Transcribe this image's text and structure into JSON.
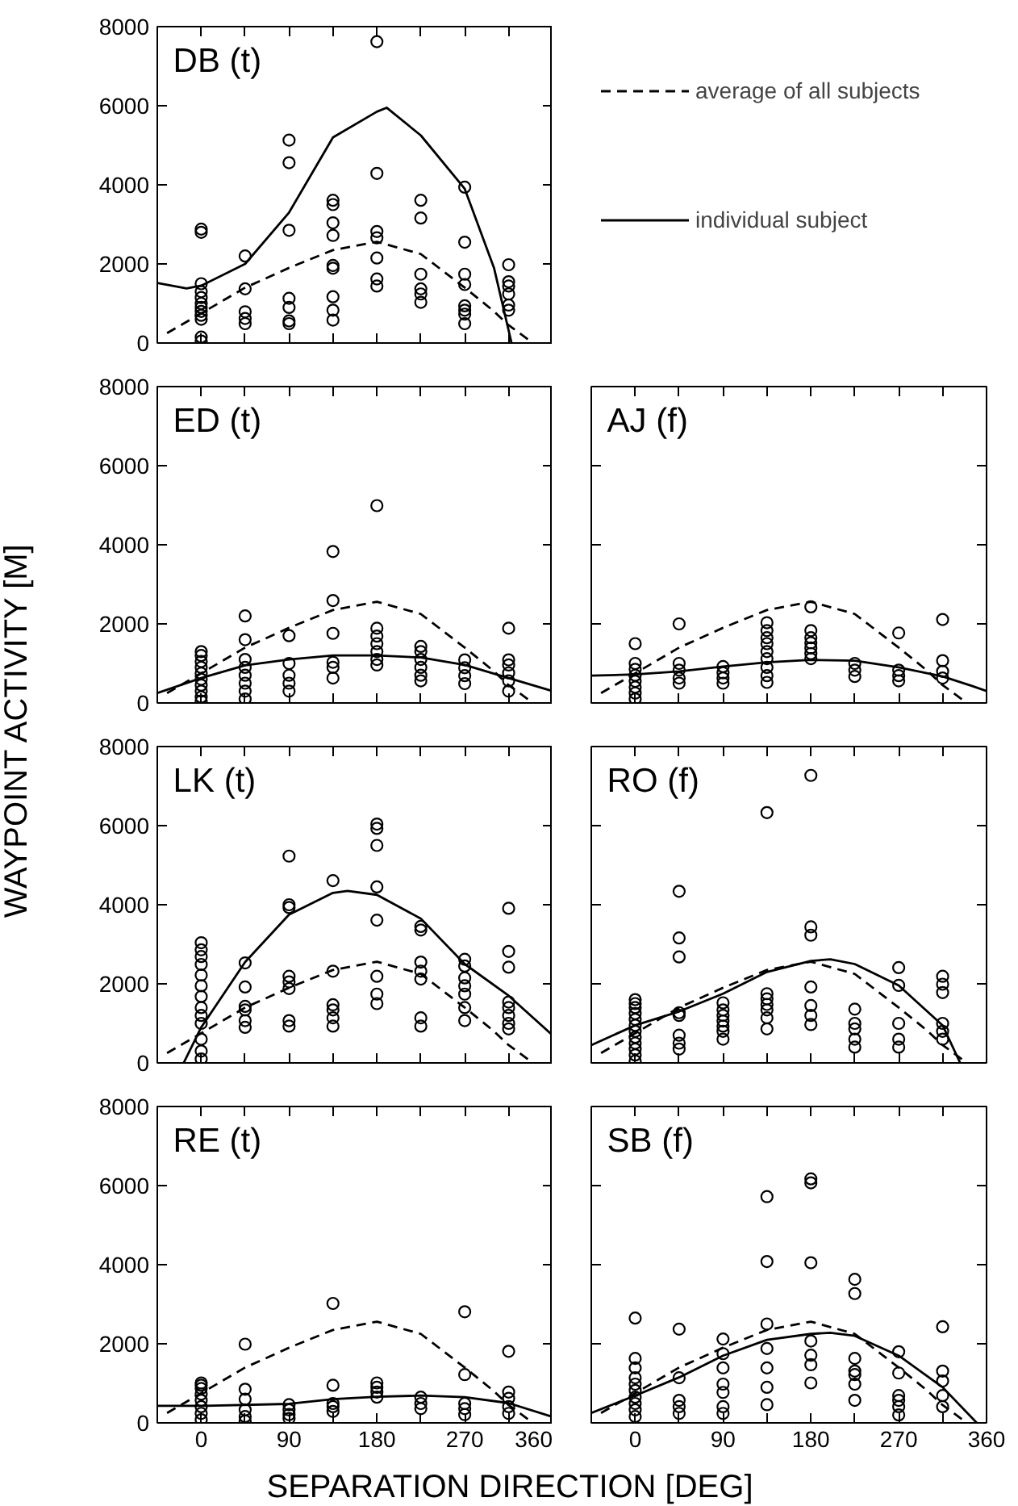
{
  "chart_data": [
    {
      "type": "scatter",
      "title": "DB (t)",
      "xlim": [
        -45,
        360
      ],
      "ylim": [
        0,
        8000
      ],
      "xticks": [
        0,
        {
          "value": 45,
          "label": null
        },
        90,
        {
          "value": 135,
          "label": null
        },
        180,
        {
          "value": 225,
          "label": null
        },
        270,
        {
          "value": 315,
          "label": null
        },
        360
      ],
      "yticks": [
        0,
        2000,
        4000,
        6000,
        8000
      ],
      "tick_labels": "y",
      "legend": "right",
      "series": [
        {
          "marker": "circle",
          "x": [
            0,
            0,
            0,
            0,
            0,
            0,
            0,
            0,
            0,
            0,
            0,
            0,
            45,
            45,
            45,
            45,
            45,
            90,
            90,
            90,
            90,
            90,
            90,
            90,
            135,
            135,
            135,
            135,
            135,
            135,
            135,
            135,
            135,
            180,
            180,
            180,
            180,
            180,
            180,
            180,
            225,
            225,
            225,
            225,
            225,
            225,
            270,
            270,
            270,
            270,
            270,
            270,
            270,
            270,
            315,
            315,
            315,
            315,
            315,
            315
          ],
          "values": [
            2880,
            2800,
            1500,
            1300,
            1150,
            1000,
            900,
            800,
            700,
            600,
            150,
            50,
            2200,
            1370,
            790,
            620,
            490,
            5130,
            4560,
            2850,
            1130,
            900,
            560,
            490,
            3610,
            3500,
            3040,
            2720,
            1960,
            1890,
            1170,
            830,
            580,
            7620,
            4290,
            2820,
            2660,
            2150,
            1620,
            1440,
            3610,
            3160,
            1740,
            1370,
            1240,
            1030,
            3940,
            2550,
            1740,
            1480,
            940,
            830,
            730,
            490,
            1980,
            1550,
            1440,
            1240,
            960,
            830
          ],
          "color": "#000000"
        },
        {
          "type": "line",
          "line_style": "dashed",
          "name": "average of all subjects",
          "x": [
            -35,
            0,
            45,
            90,
            135,
            180,
            225,
            270,
            300,
            315,
            340
          ],
          "values": [
            250,
            750,
            1400,
            1900,
            2350,
            2560,
            2250,
            1400,
            800,
            450,
            0
          ],
          "color": "#000000"
        },
        {
          "type": "line",
          "line_style": "solid",
          "name": "individual subject",
          "x": [
            -45,
            -15,
            0,
            45,
            90,
            135,
            180,
            190,
            225,
            270,
            300,
            318
          ],
          "values": [
            1520,
            1380,
            1450,
            2000,
            3300,
            5200,
            5850,
            5950,
            5250,
            3900,
            1900,
            0
          ],
          "color": "#000000"
        }
      ]
    },
    {
      "type": "scatter",
      "title": "ED (t)",
      "xlim": [
        -45,
        360
      ],
      "ylim": [
        0,
        8000
      ],
      "xticks": [
        0,
        {
          "value": 45,
          "label": null
        },
        90,
        {
          "value": 135,
          "label": null
        },
        180,
        {
          "value": 225,
          "label": null
        },
        270,
        {
          "value": 315,
          "label": null
        },
        360
      ],
      "yticks": [
        0,
        2000,
        4000,
        6000,
        8000
      ],
      "tick_labels": "y",
      "series": [
        {
          "marker": "circle",
          "x": [
            0,
            0,
            0,
            0,
            0,
            0,
            0,
            0,
            0,
            0,
            45,
            45,
            45,
            45,
            45,
            45,
            45,
            45,
            90,
            90,
            90,
            90,
            90,
            135,
            135,
            135,
            135,
            135,
            135,
            180,
            180,
            180,
            180,
            180,
            180,
            180,
            225,
            225,
            225,
            225,
            225,
            225,
            270,
            270,
            270,
            270,
            315,
            315,
            315,
            315,
            315,
            315
          ],
          "values": [
            1300,
            1200,
            1050,
            900,
            750,
            600,
            450,
            300,
            150,
            50,
            2200,
            1600,
            1100,
            900,
            700,
            500,
            300,
            100,
            1700,
            1000,
            700,
            500,
            300,
            3830,
            2590,
            1760,
            1030,
            900,
            630,
            4990,
            1890,
            1690,
            1500,
            1300,
            1100,
            960,
            1430,
            1300,
            1100,
            900,
            700,
            560,
            1090,
            890,
            690,
            490,
            1890,
            1090,
            960,
            760,
            560,
            300
          ],
          "color": "#000000"
        },
        {
          "type": "line",
          "line_style": "dashed",
          "x": [
            -35,
            0,
            45,
            90,
            135,
            180,
            225,
            270,
            300,
            315,
            340
          ],
          "values": [
            250,
            750,
            1400,
            1900,
            2350,
            2560,
            2250,
            1400,
            800,
            450,
            0
          ],
          "color": "#000000"
        },
        {
          "type": "line",
          "line_style": "solid",
          "x": [
            -45,
            0,
            45,
            90,
            135,
            180,
            225,
            270,
            315,
            360
          ],
          "values": [
            250,
            630,
            950,
            1100,
            1200,
            1200,
            1150,
            960,
            630,
            300
          ],
          "color": "#000000"
        }
      ]
    },
    {
      "type": "scatter",
      "title": "AJ (f)",
      "xlim": [
        -45,
        360
      ],
      "ylim": [
        0,
        8000
      ],
      "xticks": [
        0,
        {
          "value": 45,
          "label": null
        },
        90,
        {
          "value": 135,
          "label": null
        },
        180,
        {
          "value": 225,
          "label": null
        },
        270,
        {
          "value": 315,
          "label": null
        },
        360
      ],
      "yticks": [
        0,
        2000,
        4000,
        6000,
        8000
      ],
      "tick_labels": false,
      "series": [
        {
          "marker": "circle",
          "x": [
            0,
            0,
            0,
            0,
            0,
            0,
            0,
            0,
            45,
            45,
            45,
            45,
            45,
            90,
            90,
            90,
            90,
            135,
            135,
            135,
            135,
            135,
            135,
            135,
            135,
            135,
            180,
            180,
            180,
            180,
            180,
            180,
            180,
            225,
            225,
            225,
            270,
            270,
            270,
            270,
            315,
            315,
            315,
            315
          ],
          "values": [
            1500,
            1000,
            850,
            700,
            550,
            400,
            250,
            100,
            2000,
            1000,
            830,
            630,
            500,
            920,
            760,
            630,
            500,
            2030,
            1830,
            1650,
            1500,
            1300,
            1120,
            900,
            690,
            520,
            2430,
            1830,
            1650,
            1520,
            1390,
            1250,
            1120,
            1000,
            830,
            670,
            1770,
            830,
            690,
            560,
            2110,
            1070,
            800,
            630
          ],
          "color": "#000000"
        },
        {
          "type": "line",
          "line_style": "dashed",
          "x": [
            -35,
            0,
            45,
            90,
            135,
            180,
            225,
            270,
            300,
            315,
            340
          ],
          "values": [
            250,
            750,
            1400,
            1900,
            2350,
            2560,
            2250,
            1400,
            800,
            450,
            0
          ],
          "color": "#000000"
        },
        {
          "type": "line",
          "line_style": "solid",
          "x": [
            -45,
            0,
            45,
            90,
            135,
            180,
            225,
            270,
            315,
            345,
            360
          ],
          "values": [
            690,
            720,
            800,
            920,
            1030,
            1090,
            1070,
            900,
            670,
            430,
            300
          ],
          "color": "#000000"
        }
      ]
    },
    {
      "type": "scatter",
      "title": "LK (t)",
      "ylabel": "WAYPOINT ACTIVITY [M]",
      "xlim": [
        -45,
        360
      ],
      "ylim": [
        0,
        8000
      ],
      "xticks": [
        0,
        {
          "value": 45,
          "label": null
        },
        90,
        {
          "value": 135,
          "label": null
        },
        180,
        {
          "value": 225,
          "label": null
        },
        270,
        {
          "value": 315,
          "label": null
        },
        360
      ],
      "yticks": [
        0,
        2000,
        4000,
        6000,
        8000
      ],
      "tick_labels": "y",
      "series": [
        {
          "marker": "circle",
          "x": [
            0,
            0,
            0,
            0,
            0,
            0,
            0,
            0,
            0,
            0,
            0,
            0,
            0,
            45,
            45,
            45,
            45,
            45,
            45,
            90,
            90,
            90,
            90,
            90,
            90,
            90,
            90,
            135,
            135,
            135,
            135,
            135,
            135,
            180,
            180,
            180,
            180,
            180,
            180,
            180,
            180,
            225,
            225,
            225,
            225,
            225,
            225,
            225,
            270,
            270,
            270,
            270,
            270,
            270,
            270,
            315,
            315,
            315,
            315,
            315,
            315,
            315,
            315
          ],
          "values": [
            3040,
            2860,
            2690,
            2490,
            2220,
            1950,
            1680,
            1400,
            1200,
            1000,
            600,
            300,
            100,
            2530,
            1920,
            1430,
            1340,
            1070,
            900,
            5230,
            4000,
            3930,
            2190,
            2050,
            1880,
            1070,
            930,
            4610,
            2320,
            1470,
            1340,
            1140,
            930,
            6040,
            5930,
            5500,
            4450,
            3610,
            2190,
            1740,
            1500,
            3450,
            3360,
            2550,
            2320,
            2120,
            1140,
            930,
            2620,
            2450,
            2150,
            1950,
            1740,
            1400,
            1070,
            3910,
            2820,
            2420,
            1540,
            1400,
            1200,
            1000,
            860
          ],
          "color": "#000000"
        },
        {
          "type": "line",
          "line_style": "dashed",
          "x": [
            -35,
            0,
            45,
            90,
            135,
            180,
            225,
            270,
            300,
            315,
            340
          ],
          "values": [
            250,
            750,
            1400,
            1900,
            2350,
            2560,
            2250,
            1400,
            800,
            450,
            0
          ],
          "color": "#000000"
        },
        {
          "type": "line",
          "line_style": "solid",
          "x": [
            -18,
            0,
            45,
            90,
            135,
            150,
            180,
            225,
            270,
            315,
            360
          ],
          "values": [
            0,
            900,
            2550,
            3750,
            4300,
            4350,
            4250,
            3650,
            2500,
            1700,
            700
          ],
          "color": "#000000"
        }
      ]
    },
    {
      "type": "scatter",
      "title": "RO (f)",
      "xlim": [
        -45,
        360
      ],
      "ylim": [
        0,
        8000
      ],
      "xticks": [
        0,
        {
          "value": 45,
          "label": null
        },
        90,
        {
          "value": 135,
          "label": null
        },
        180,
        {
          "value": 225,
          "label": null
        },
        270,
        {
          "value": 315,
          "label": null
        },
        360
      ],
      "yticks": [
        0,
        2000,
        4000,
        6000,
        8000
      ],
      "tick_labels": false,
      "series": [
        {
          "marker": "circle",
          "x": [
            0,
            0,
            0,
            0,
            0,
            0,
            0,
            0,
            0,
            0,
            0,
            0,
            45,
            45,
            45,
            45,
            45,
            45,
            45,
            45,
            90,
            90,
            90,
            90,
            90,
            90,
            90,
            135,
            135,
            135,
            135,
            135,
            135,
            135,
            180,
            180,
            180,
            180,
            180,
            180,
            180,
            225,
            225,
            225,
            225,
            225,
            270,
            270,
            270,
            270,
            270,
            315,
            315,
            315,
            315,
            315,
            315
          ],
          "values": [
            1600,
            1500,
            1400,
            1250,
            1100,
            950,
            800,
            650,
            500,
            350,
            200,
            50,
            4340,
            3160,
            2680,
            1270,
            1200,
            700,
            500,
            350,
            1520,
            1340,
            1200,
            1060,
            930,
            800,
            600,
            6330,
            1750,
            1620,
            1480,
            1340,
            1140,
            860,
            7270,
            3440,
            3230,
            1920,
            1450,
            1200,
            970,
            1360,
            1000,
            860,
            600,
            400,
            2410,
            1960,
            1000,
            600,
            400,
            2190,
            1990,
            1780,
            1000,
            800,
            600
          ],
          "color": "#000000"
        },
        {
          "type": "line",
          "line_style": "dashed",
          "x": [
            -35,
            0,
            45,
            90,
            135,
            180,
            225,
            270,
            300,
            315,
            340
          ],
          "values": [
            250,
            750,
            1400,
            1900,
            2350,
            2560,
            2250,
            1400,
            800,
            450,
            0
          ],
          "color": "#000000"
        },
        {
          "type": "line",
          "line_style": "solid",
          "x": [
            -45,
            0,
            45,
            90,
            135,
            180,
            200,
            225,
            270,
            315,
            333
          ],
          "values": [
            450,
            950,
            1300,
            1750,
            2300,
            2580,
            2620,
            2500,
            1960,
            950,
            0
          ],
          "color": "#000000"
        }
      ]
    },
    {
      "type": "scatter",
      "title": "RE (t)",
      "xlabel": "SEPARATION DIRECTION [DEG]",
      "xlim": [
        -45,
        360
      ],
      "ylim": [
        0,
        8000
      ],
      "xticks": [
        0,
        {
          "value": 45,
          "label": null
        },
        90,
        {
          "value": 135,
          "label": null
        },
        180,
        {
          "value": 225,
          "label": null
        },
        270,
        {
          "value": 315,
          "label": null
        },
        360
      ],
      "yticks": [
        0,
        2000,
        4000,
        6000,
        8000
      ],
      "series": [
        {
          "marker": "circle",
          "x": [
            0,
            0,
            0,
            0,
            0,
            0,
            0,
            0,
            45,
            45,
            45,
            45,
            45,
            45,
            90,
            90,
            90,
            90,
            135,
            135,
            135,
            135,
            135,
            180,
            180,
            180,
            180,
            225,
            225,
            225,
            270,
            270,
            270,
            270,
            270,
            315,
            315,
            315,
            315,
            315
          ],
          "values": [
            1010,
            950,
            870,
            730,
            570,
            410,
            240,
            80,
            1990,
            850,
            600,
            330,
            160,
            50,
            460,
            330,
            210,
            110,
            3020,
            950,
            490,
            410,
            290,
            1010,
            900,
            780,
            650,
            650,
            490,
            360,
            2810,
            1220,
            490,
            360,
            210,
            1810,
            780,
            620,
            410,
            240
          ],
          "color": "#000000"
        },
        {
          "type": "line",
          "line_style": "dashed",
          "x": [
            -35,
            0,
            45,
            90,
            135,
            180,
            225,
            270,
            300,
            315,
            340
          ],
          "values": [
            250,
            750,
            1400,
            1900,
            2350,
            2560,
            2250,
            1400,
            800,
            450,
            0
          ],
          "color": "#000000"
        },
        {
          "type": "line",
          "line_style": "solid",
          "x": [
            -45,
            0,
            90,
            135,
            180,
            225,
            270,
            315,
            360
          ],
          "values": [
            430,
            430,
            480,
            600,
            660,
            690,
            650,
            500,
            150
          ],
          "color": "#000000"
        }
      ]
    },
    {
      "type": "scatter",
      "title": "SB (f)",
      "xlim": [
        -45,
        360
      ],
      "ylim": [
        0,
        8000
      ],
      "xticks": [
        0,
        {
          "value": 45,
          "label": null
        },
        90,
        {
          "value": 135,
          "label": null
        },
        180,
        {
          "value": 225,
          "label": null
        },
        270,
        {
          "value": 315,
          "label": null
        },
        360
      ],
      "yticks": [
        0,
        2000,
        4000,
        6000,
        8000
      ],
      "tick_labels": "x",
      "series": [
        {
          "marker": "circle",
          "x": [
            0,
            0,
            0,
            0,
            0,
            0,
            0,
            0,
            0,
            0,
            45,
            45,
            45,
            45,
            45,
            90,
            90,
            90,
            90,
            90,
            90,
            90,
            135,
            135,
            135,
            135,
            135,
            135,
            135,
            180,
            180,
            180,
            180,
            180,
            180,
            180,
            225,
            225,
            225,
            225,
            225,
            225,
            225,
            270,
            270,
            270,
            270,
            270,
            270,
            315,
            315,
            315,
            315,
            315
          ],
          "values": [
            2650,
            1630,
            1390,
            1140,
            980,
            820,
            650,
            490,
            330,
            160,
            2370,
            1140,
            570,
            410,
            240,
            2120,
            1750,
            1390,
            980,
            770,
            410,
            240,
            5720,
            4080,
            2500,
            1880,
            1390,
            900,
            460,
            6170,
            6070,
            4050,
            2070,
            1710,
            1470,
            1010,
            3630,
            3270,
            1630,
            1310,
            1220,
            980,
            570,
            1800,
            1260,
            690,
            570,
            410,
            200,
            2430,
            1310,
            1060,
            690,
            410
          ],
          "color": "#000000"
        },
        {
          "type": "line",
          "line_style": "dashed",
          "x": [
            -35,
            0,
            45,
            90,
            135,
            180,
            225,
            270,
            300,
            315,
            340
          ],
          "values": [
            250,
            750,
            1400,
            1900,
            2350,
            2560,
            2250,
            1400,
            800,
            450,
            0
          ],
          "color": "#000000"
        },
        {
          "type": "line",
          "line_style": "solid",
          "x": [
            -45,
            0,
            45,
            90,
            135,
            180,
            200,
            225,
            270,
            315,
            350
          ],
          "values": [
            250,
            690,
            1150,
            1700,
            2100,
            2250,
            2280,
            2200,
            1700,
            900,
            0
          ],
          "color": "#000000"
        }
      ]
    }
  ]
}
